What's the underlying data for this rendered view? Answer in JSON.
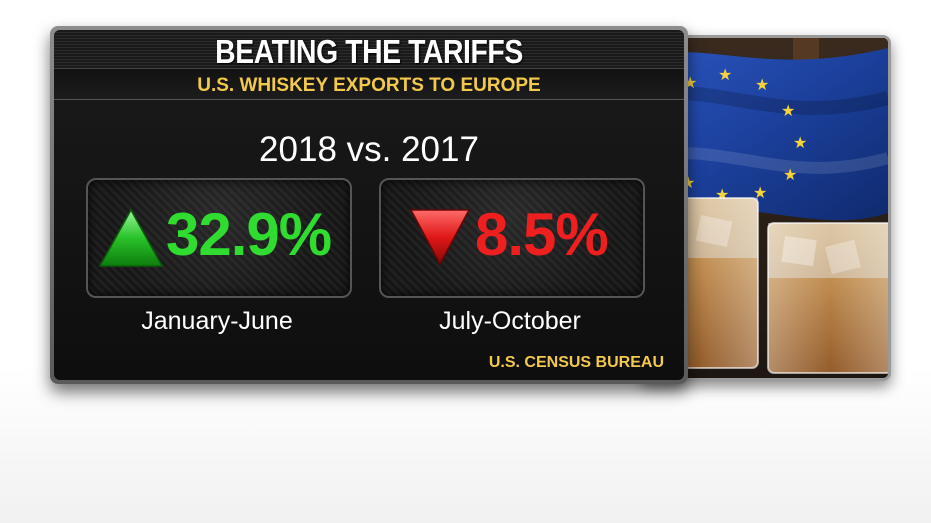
{
  "title": "BEATING THE TARIFFS",
  "subtitle": "U.S. WHISKEY EXPORTS TO EUROPE",
  "comparison": "2018 vs. 2017",
  "stats": [
    {
      "value": "32.9%",
      "period": "January-June",
      "direction": "up",
      "color": "#2fdc2f",
      "icon": "up-triangle-icon"
    },
    {
      "value": "8.5%",
      "period": "July-October",
      "direction": "down",
      "color": "#ef1f1f",
      "icon": "down-triangle-icon"
    }
  ],
  "source": "U.S. CENSUS BUREAU",
  "colors": {
    "accent": "#f3c94c",
    "positive": "#2fdc2f",
    "negative": "#ef1f1f",
    "flag": "#1b3f9a"
  },
  "photo": {
    "subject": "eu-flag-and-whiskey-glasses-photo"
  }
}
